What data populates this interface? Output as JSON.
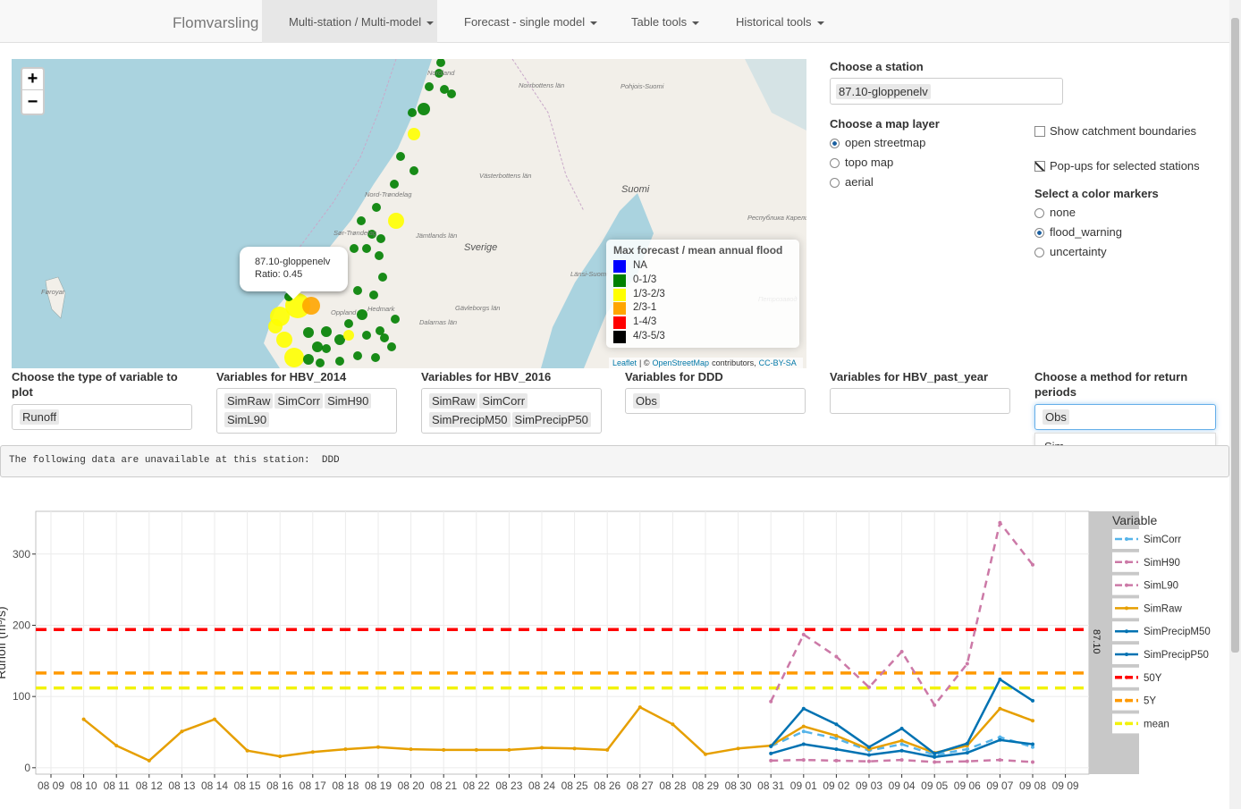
{
  "navbar": {
    "brand": "Flomvarsling",
    "menus": [
      "Multi-station / Multi-model",
      "Forecast - single model",
      "Table tools",
      "Historical tools"
    ],
    "active": 0
  },
  "map": {
    "zoom_in": "+",
    "zoom_out": "−",
    "place_labels": [
      "Nordland",
      "Norrbottens län",
      "Pohjois-Suomi",
      "Västerbottens län",
      "Suomi",
      "Sverige",
      "Føroyar",
      "Jämtlands län",
      "Sør-Trøndelag",
      "Nord-Trøndelag",
      "Oppland",
      "Hedmark",
      "Dalarnas län",
      "Gävleborgs län",
      "Länsi-Suomi",
      "Республика Карелия",
      "Петрозавод"
    ],
    "popup": {
      "station": "87.10-gloppenelv",
      "ratio": "Ratio: 0.45"
    },
    "legend": {
      "title": "Max forecast / mean annual flood",
      "items": [
        {
          "label": "NA",
          "color": "#0000ff"
        },
        {
          "label": "0-1/3",
          "color": "#008000"
        },
        {
          "label": "1/3-2/3",
          "color": "#ffff00"
        },
        {
          "label": "2/3-1",
          "color": "#ffa500"
        },
        {
          "label": "1-4/3",
          "color": "#ff0000"
        },
        {
          "label": "4/3-5/3",
          "color": "#000000"
        }
      ]
    },
    "attribution": [
      "Leaflet",
      "| ©",
      "OpenStreetMap",
      "contributors,",
      "CC-BY-SA"
    ]
  },
  "station": {
    "label": "Choose a station",
    "value": "87.10-gloppenelv"
  },
  "map_layer": {
    "label": "Choose a map layer",
    "options": [
      "open streetmap",
      "topo map",
      "aerial"
    ],
    "selected": 0
  },
  "checkboxes": [
    {
      "label": "Show catchment boundaries",
      "checked": false
    },
    {
      "label": "Pop-ups for selected stations",
      "checked": true
    }
  ],
  "color_markers": {
    "label": "Select a color markers",
    "options": [
      "none",
      "flood_warning",
      "uncertainty"
    ],
    "selected": 1
  },
  "variable_inputs": [
    {
      "label": "Choose the type of variable to plot",
      "tags": [
        "Runoff"
      ]
    },
    {
      "label": "Variables for HBV_2014",
      "tags": [
        "SimRaw",
        "SimCorr",
        "SimH90",
        "SimL90"
      ]
    },
    {
      "label": "Variables for HBV_2016",
      "tags": [
        "SimRaw",
        "SimCorr",
        "SimPrecipM50",
        "SimPrecipP50"
      ]
    },
    {
      "label": "Variables for DDD",
      "tags": [
        "Obs"
      ]
    },
    {
      "label": "Variables for HBV_past_year",
      "tags": []
    },
    {
      "label": "Choose a method for return periods",
      "tags": [
        "Obs"
      ],
      "dropdown": [
        "Sim"
      ]
    }
  ],
  "message": "The following data are unavailable at this station:  DDD",
  "plot": {
    "y_label": "Runoff (m³/s)",
    "strip": "87.10",
    "legend_title": "Variable",
    "categories": [
      "08 09",
      "08 10",
      "08 11",
      "08 12",
      "08 13",
      "08 14",
      "08 15",
      "08 16",
      "08 17",
      "08 18",
      "08 19",
      "08 20",
      "08 21",
      "08 22",
      "08 23",
      "08 24",
      "08 25",
      "08 26",
      "08 27",
      "08 28",
      "08 29",
      "08 30",
      "08 31",
      "09 01",
      "09 02",
      "09 03",
      "09 04",
      "09 05",
      "09 06",
      "09 07",
      "09 08",
      "09 09"
    ],
    "ylim": [
      -9,
      360
    ],
    "yticks": [
      0,
      100,
      200,
      300
    ],
    "grid": true,
    "series": [
      {
        "name": "SimCorr",
        "color": "#56B4E9",
        "linetype": "dashed",
        "values": [
          null,
          null,
          null,
          null,
          null,
          null,
          null,
          null,
          null,
          null,
          null,
          null,
          null,
          null,
          null,
          null,
          null,
          null,
          null,
          null,
          null,
          null,
          30,
          51,
          41,
          24,
          33,
          18,
          26,
          43,
          29,
          null
        ]
      },
      {
        "name": "SimH90",
        "color": "#CC79A7",
        "linetype": "dashed",
        "values": [
          null,
          null,
          null,
          null,
          null,
          null,
          null,
          null,
          null,
          null,
          null,
          null,
          null,
          null,
          null,
          null,
          null,
          null,
          null,
          null,
          null,
          null,
          93,
          187,
          156,
          113,
          163,
          88,
          146,
          344,
          285,
          null
        ]
      },
      {
        "name": "SimL90",
        "color": "#CC79A7",
        "linetype": "dashed",
        "values": [
          null,
          null,
          null,
          null,
          null,
          null,
          null,
          null,
          null,
          null,
          null,
          null,
          null,
          null,
          null,
          null,
          null,
          null,
          null,
          null,
          null,
          null,
          10,
          11,
          10,
          9,
          11,
          8,
          9,
          11,
          8,
          null
        ]
      },
      {
        "name": "SimRaw",
        "color": "#E69F00",
        "linetype": "solid",
        "values": [
          null,
          68,
          31,
          10,
          51,
          68,
          24,
          16,
          22,
          26,
          29,
          26,
          25,
          25,
          25,
          28,
          27,
          25,
          85,
          61,
          19,
          27,
          31,
          58,
          45,
          26,
          38,
          21,
          31,
          83,
          66,
          null
        ]
      },
      {
        "name": "SimPrecipM50",
        "color": "#0072B2",
        "linetype": "solid",
        "values": [
          null,
          null,
          null,
          null,
          null,
          null,
          null,
          null,
          null,
          null,
          null,
          null,
          null,
          null,
          null,
          null,
          null,
          null,
          null,
          null,
          null,
          null,
          30,
          83,
          61,
          29,
          55,
          20,
          34,
          124,
          94,
          null
        ]
      },
      {
        "name": "SimPrecipP50",
        "color": "#0072B2",
        "linetype": "solid",
        "values": [
          null,
          null,
          null,
          null,
          null,
          null,
          null,
          null,
          null,
          null,
          null,
          null,
          null,
          null,
          null,
          null,
          null,
          null,
          null,
          null,
          null,
          null,
          20,
          33,
          26,
          18,
          24,
          15,
          21,
          39,
          33,
          null
        ]
      }
    ],
    "thresholds": [
      {
        "name": "50Y",
        "color": "#FF0000",
        "value": 194
      },
      {
        "name": "5Y",
        "color": "#FF9900",
        "value": 133
      },
      {
        "name": "mean",
        "color": "#F2F20A",
        "value": 112
      }
    ]
  }
}
